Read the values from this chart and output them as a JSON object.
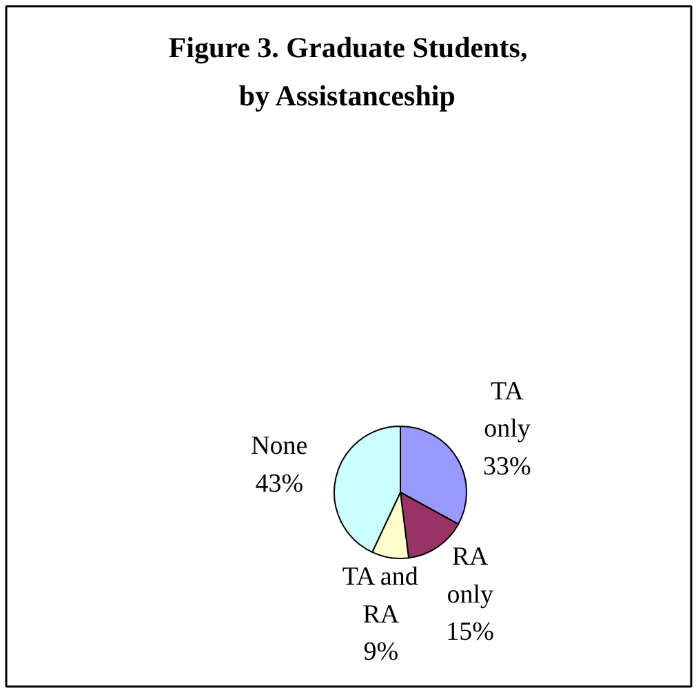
{
  "chart_data": {
    "type": "pie",
    "title": "Figure 3. Graduate Students, by Assistanceship",
    "categories": [
      "TA only",
      "RA only",
      "TA and RA",
      "None"
    ],
    "values": [
      33,
      15,
      9,
      43
    ],
    "value_labels": [
      "33%",
      "15%",
      "9%",
      "43%"
    ],
    "colors": [
      "#9999ff",
      "#993366",
      "#ffffcc",
      "#ccffff"
    ]
  }
}
